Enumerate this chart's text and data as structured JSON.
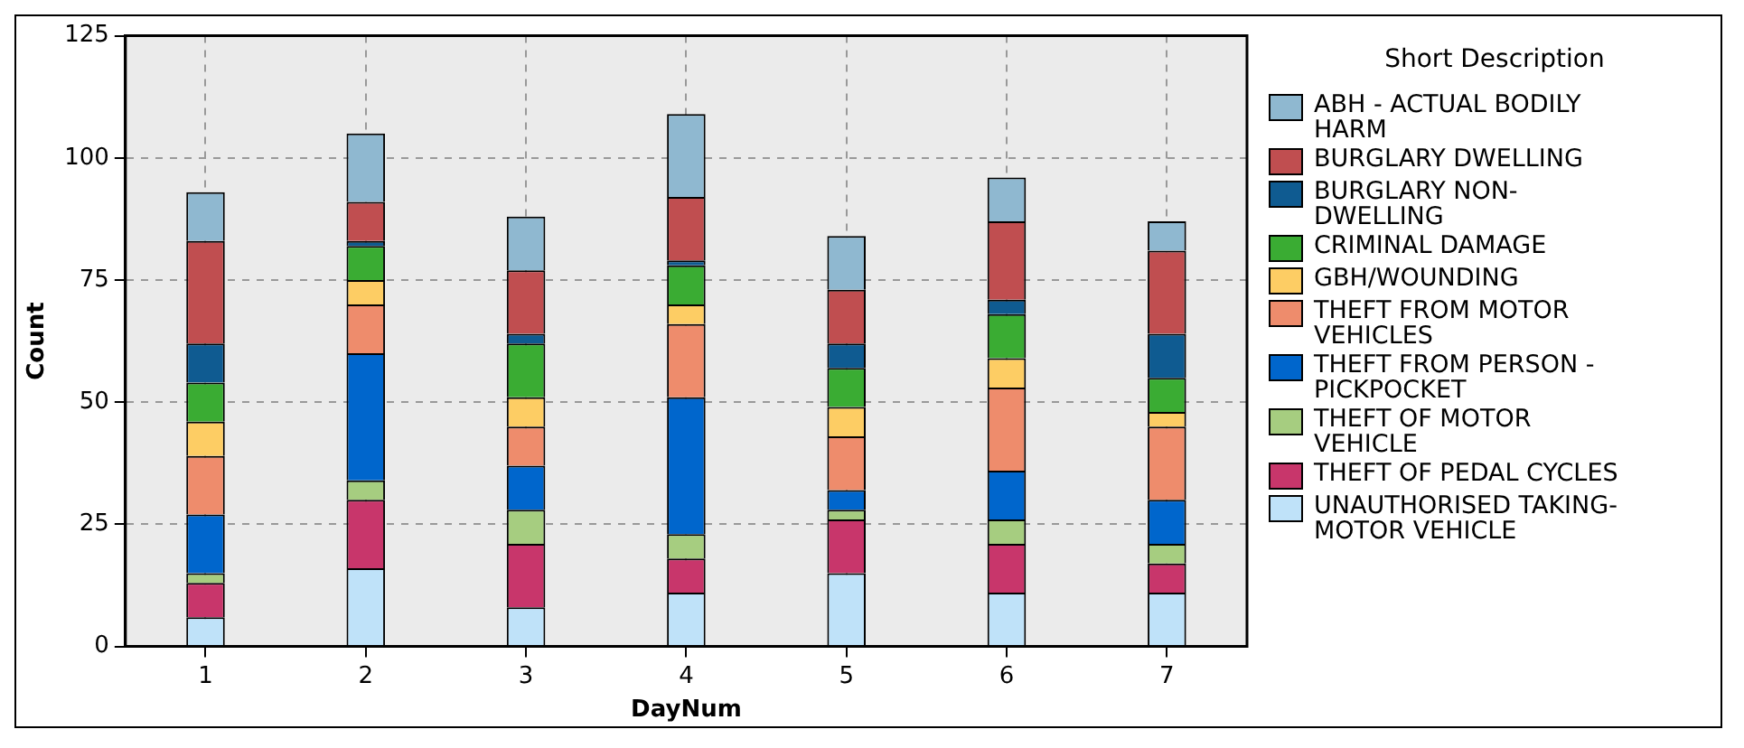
{
  "chart_data": {
    "type": "bar",
    "stacked": true,
    "xlabel": "DayNum",
    "ylabel": "Count",
    "legend_title": "Short Description",
    "legend": "right",
    "grid": true,
    "categories": [
      "1",
      "2",
      "3",
      "4",
      "5",
      "6",
      "7"
    ],
    "ylim": [
      0,
      125
    ],
    "yticks": [
      0,
      25,
      50,
      75,
      100,
      125
    ],
    "series": [
      {
        "name": "UNAUTHORISED TAKING-MOTOR VEHICLE",
        "color": "#bfe2f9",
        "values": [
          6,
          16,
          8,
          11,
          15,
          11,
          11
        ]
      },
      {
        "name": "THEFT OF PEDAL CYCLES",
        "color": "#c8366b",
        "values": [
          7,
          14,
          13,
          7,
          11,
          10,
          6
        ]
      },
      {
        "name": "THEFT OF MOTOR VEHICLE",
        "color": "#a6cd80",
        "values": [
          2,
          4,
          7,
          5,
          2,
          5,
          4
        ]
      },
      {
        "name": "THEFT FROM PERSON - PICKPOCKET",
        "color": "#0066cc",
        "values": [
          12,
          26,
          9,
          28,
          4,
          10,
          9
        ]
      },
      {
        "name": "THEFT FROM MOTOR VEHICLES",
        "color": "#ee8c6c",
        "values": [
          12,
          10,
          8,
          15,
          11,
          17,
          15
        ]
      },
      {
        "name": "GBH/WOUNDING",
        "color": "#fdcd64",
        "values": [
          7,
          5,
          6,
          4,
          6,
          6,
          3
        ]
      },
      {
        "name": "CRIMINAL DAMAGE",
        "color": "#3aac33",
        "values": [
          8,
          7,
          11,
          8,
          8,
          9,
          7
        ]
      },
      {
        "name": "BURGLARY NON-DWELLING",
        "color": "#0f5b91",
        "values": [
          8,
          1,
          2,
          1,
          5,
          3,
          9
        ]
      },
      {
        "name": "BURGLARY DWELLING",
        "color": "#c04e50",
        "values": [
          21,
          8,
          13,
          13,
          11,
          16,
          17
        ]
      },
      {
        "name": "ABH - ACTUAL BODILY HARM",
        "color": "#8fb8d0",
        "values": [
          10,
          14,
          11,
          17,
          11,
          9,
          6
        ]
      }
    ]
  }
}
